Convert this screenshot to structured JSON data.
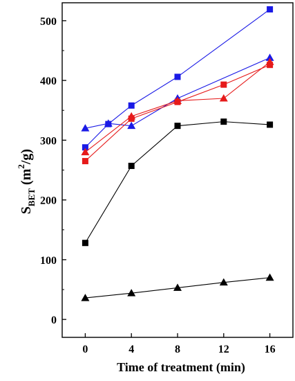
{
  "chart_data": {
    "type": "line",
    "xlabel": "Time of treatment (min)",
    "ylabel": {
      "main": "S",
      "sub": "BET",
      "unit_open": " (m",
      "unit_sup": "2",
      "unit_close": "/g)"
    },
    "xlim": [
      -2,
      18
    ],
    "ylim": [
      -30,
      530
    ],
    "x_ticks": [
      0,
      4,
      8,
      12,
      16
    ],
    "y_ticks": [
      0,
      100,
      200,
      300,
      400,
      500
    ],
    "grid": false,
    "series": [
      {
        "marker": "square",
        "color": "#1a1ae6",
        "x": [
          0,
          2,
          4,
          8,
          16
        ],
        "y": [
          288,
          327,
          358,
          406,
          519
        ]
      },
      {
        "marker": "triangle",
        "color": "#1a1ae6",
        "x": [
          0,
          2,
          4,
          8,
          16
        ],
        "y": [
          320,
          328,
          324,
          370,
          438
        ]
      },
      {
        "marker": "square",
        "color": "#e61a1a",
        "x": [
          0,
          4,
          8,
          12,
          16
        ],
        "y": [
          265,
          336,
          364,
          393,
          426
        ]
      },
      {
        "marker": "triangle",
        "color": "#e61a1a",
        "x": [
          0,
          4,
          8,
          12,
          16
        ],
        "y": [
          280,
          340,
          366,
          370,
          431
        ]
      },
      {
        "marker": "square",
        "color": "#000000",
        "x": [
          0,
          4,
          8,
          12,
          16
        ],
        "y": [
          128,
          257,
          324,
          331,
          326
        ]
      },
      {
        "marker": "triangle",
        "color": "#000000",
        "x": [
          0,
          4,
          8,
          12,
          16
        ],
        "y": [
          36,
          44,
          53,
          62,
          70
        ]
      }
    ]
  }
}
